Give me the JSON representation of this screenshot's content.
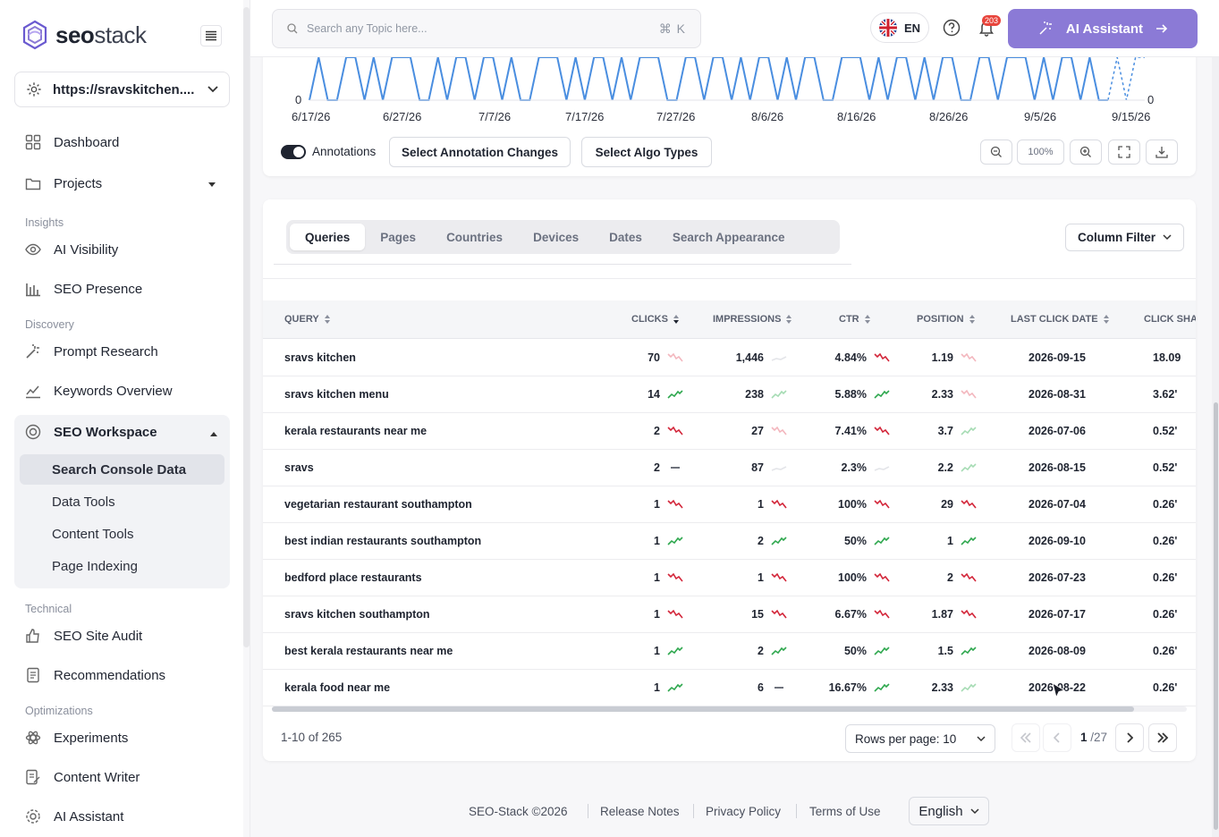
{
  "brand": {
    "bold": "seo",
    "light": "stack"
  },
  "site_selector": {
    "value": "https://sravskitchen...."
  },
  "sidebar": {
    "dashboard": "Dashboard",
    "projects": "Projects",
    "sections": {
      "insights": "Insights",
      "discovery": "Discovery",
      "technical": "Technical",
      "optimizations": "Optimizations"
    },
    "ai_visibility": "AI Visibility",
    "seo_presence": "SEO Presence",
    "prompt_research": "Prompt Research",
    "keywords_overview": "Keywords Overview",
    "seo_workspace": "SEO Workspace",
    "workspace_items": [
      "Search Console Data",
      "Data Tools",
      "Content Tools",
      "Page Indexing"
    ],
    "seo_site_audit": "SEO Site Audit",
    "recommendations": "Recommendations",
    "experiments": "Experiments",
    "content_writer": "Content Writer",
    "ai_assistant": "AI Assistant"
  },
  "topbar": {
    "search_placeholder": "Search any Topic here...",
    "shortcut": "⌘ K",
    "language": "EN",
    "notification_count": "203",
    "ai_button": "AI Assistant"
  },
  "chart": {
    "x_ticks": [
      "6/17/26",
      "6/27/26",
      "7/7/26",
      "7/17/26",
      "7/27/26",
      "8/6/26",
      "8/16/26",
      "8/26/26",
      "9/5/26",
      "9/15/26"
    ],
    "y_left_min": "0",
    "y_right_min": "0",
    "line_color": "#4a8ee0",
    "annotations_label": "Annotations",
    "annotations_on": true,
    "select_annotation_changes": "Select Annotation Changes",
    "select_algo_types": "Select Algo Types",
    "zoom_level": "100%"
  },
  "tabs": [
    "Queries",
    "Pages",
    "Countries",
    "Devices",
    "Dates",
    "Search Appearance"
  ],
  "active_tab": "Queries",
  "column_filter": "Column Filter",
  "table": {
    "headers": [
      "QUERY",
      "CLICKS",
      "IMPRESSIONS",
      "CTR",
      "POSITION",
      "LAST CLICK DATE",
      "CLICK SHA"
    ],
    "rows": [
      {
        "query": "sravs kitchen",
        "clicks": "70",
        "ct": "down-faint",
        "impr": "1,446",
        "it": "flat-faint",
        "ctr": "4.84%",
        "rt": "down",
        "pos": "1.19",
        "pt": "down-faint",
        "date": "2026-09-15",
        "share": "18.09"
      },
      {
        "query": "sravs kitchen menu",
        "clicks": "14",
        "ct": "up",
        "impr": "238",
        "it": "up-faint",
        "ctr": "5.88%",
        "rt": "up",
        "pos": "2.33",
        "pt": "down-faint",
        "date": "2026-08-31",
        "share": "3.62'"
      },
      {
        "query": "kerala restaurants near me",
        "clicks": "2",
        "ct": "down",
        "impr": "27",
        "it": "down-faint",
        "ctr": "7.41%",
        "rt": "down",
        "pos": "3.7",
        "pt": "up-faint",
        "date": "2026-07-06",
        "share": "0.52'"
      },
      {
        "query": "sravs",
        "clicks": "2",
        "ct": "dash",
        "impr": "87",
        "it": "flat-faint",
        "ctr": "2.3%",
        "rt": "flat-faint",
        "pos": "2.2",
        "pt": "up-faint",
        "date": "2026-08-15",
        "share": "0.52'"
      },
      {
        "query": "vegetarian restaurant southampton",
        "clicks": "1",
        "ct": "down",
        "impr": "1",
        "it": "down",
        "ctr": "100%",
        "rt": "down",
        "pos": "29",
        "pt": "down",
        "date": "2026-07-04",
        "share": "0.26'"
      },
      {
        "query": "best indian restaurants southampton",
        "clicks": "1",
        "ct": "up",
        "impr": "2",
        "it": "up",
        "ctr": "50%",
        "rt": "up",
        "pos": "1",
        "pt": "up",
        "date": "2026-09-10",
        "share": "0.26'"
      },
      {
        "query": "bedford place restaurants",
        "clicks": "1",
        "ct": "down",
        "impr": "1",
        "it": "down",
        "ctr": "100%",
        "rt": "down",
        "pos": "2",
        "pt": "down",
        "date": "2026-07-23",
        "share": "0.26'"
      },
      {
        "query": "sravs kitchen southampton",
        "clicks": "1",
        "ct": "down",
        "impr": "15",
        "it": "down",
        "ctr": "6.67%",
        "rt": "down",
        "pos": "1.87",
        "pt": "down",
        "date": "2026-07-17",
        "share": "0.26'"
      },
      {
        "query": "best kerala restaurants near me",
        "clicks": "1",
        "ct": "up",
        "impr": "2",
        "it": "up",
        "ctr": "50%",
        "rt": "up",
        "pos": "1.5",
        "pt": "up",
        "date": "2026-08-09",
        "share": "0.26'"
      },
      {
        "query": "kerala food near me",
        "clicks": "1",
        "ct": "up",
        "impr": "6",
        "it": "dash",
        "ctr": "16.67%",
        "rt": "up",
        "pos": "2.33",
        "pt": "up-faint",
        "date": "2026-08-22",
        "share": "0.26'"
      }
    ]
  },
  "pagination": {
    "range": "1-10 of 265",
    "rows_per_page": "Rows per page: 10",
    "page": "1",
    "total": "/27"
  },
  "footer": {
    "copyright": "SEO-Stack ©2026",
    "release_notes": "Release Notes",
    "privacy": "Privacy Policy",
    "terms": "Terms of Use",
    "language": "English"
  },
  "colors": {
    "up": "#2fa84f",
    "down": "#d3263a",
    "up_faint": "#a6dcb4",
    "down_faint": "#f3b7be",
    "accent": "#8b7ad6"
  }
}
